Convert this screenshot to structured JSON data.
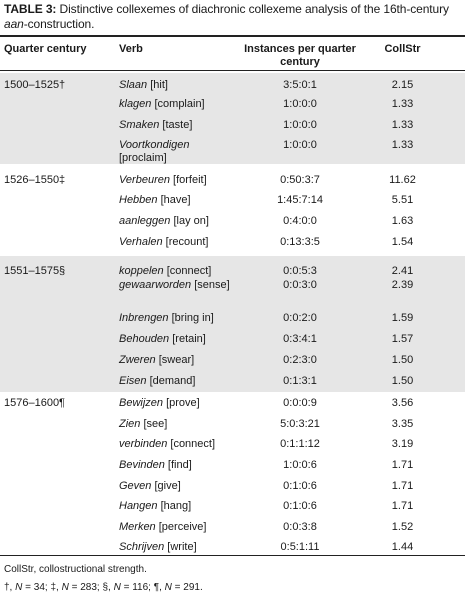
{
  "caption": {
    "label": "TABLE 3:",
    "text_before": " Distinctive collexemes of diachronic collexeme analysis of the 16th-century ",
    "italic": "aan",
    "text_after": "-construction."
  },
  "headers": {
    "quarter": "Quarter century",
    "verb": "Verb",
    "instances": "Instances per quarter century",
    "collstr": "CollStr"
  },
  "groups": [
    {
      "quarter": "1500–1525†",
      "rows": [
        {
          "verb_italic": "Slaan",
          "gloss": " [hit]",
          "instances": "3:5:0:1",
          "collstr": "2.15"
        },
        {
          "verb_italic": "klagen",
          "gloss": " [complain]",
          "instances": "1:0:0:0",
          "collstr": "1.33"
        },
        {
          "verb_italic": "Smaken",
          "gloss": " [taste]",
          "instances": "1:0:0:0",
          "collstr": "1.33"
        },
        {
          "verb_italic": "Voortkondigen",
          "gloss": " [proclaim]",
          "instances": "1:0:0:0",
          "collstr": "1.33"
        }
      ]
    },
    {
      "quarter": "1526–1550‡",
      "rows": [
        {
          "verb_italic": "Verbeuren",
          "gloss": " [forfeit]",
          "instances": "0:50:3:7",
          "collstr": "11.62"
        },
        {
          "verb_italic": "Hebben",
          "gloss": " [have]",
          "instances": "1:45:7:14",
          "collstr": "5.51"
        },
        {
          "verb_italic": "aanleggen",
          "gloss": " [lay on]",
          "instances": "0:4:0:0",
          "collstr": "1.63"
        },
        {
          "verb_italic": "Verhalen",
          "gloss": " [recount]",
          "instances": "0:13:3:5",
          "collstr": "1.54"
        }
      ]
    },
    {
      "quarter": "1551–1575§",
      "rows": [
        {
          "verb_italic": "koppelen",
          "gloss": " [connect]",
          "instances": "0:0:5:3",
          "collstr": "2.41"
        },
        {
          "verb_italic": "gewaarworden",
          "gloss": " [sense]",
          "instances": "0:0:3:0",
          "collstr": "2.39"
        },
        {
          "verb_italic": "Inbrengen",
          "gloss": " [bring in]",
          "instances": "0:0:2:0",
          "collstr": "1.59"
        },
        {
          "verb_italic": "Behouden",
          "gloss": " [retain]",
          "instances": "0:3:4:1",
          "collstr": "1.57"
        },
        {
          "verb_italic": "Zweren",
          "gloss": " [swear]",
          "instances": "0:2:3:0",
          "collstr": "1.50"
        },
        {
          "verb_italic": "Eisen",
          "gloss": " [demand]",
          "instances": "0:1:3:1",
          "collstr": "1.50"
        }
      ]
    },
    {
      "quarter": "1576–1600¶",
      "rows": [
        {
          "verb_italic": "Bewijzen",
          "gloss": " [prove]",
          "instances": "0:0:0:9",
          "collstr": "3.56"
        },
        {
          "verb_italic": "Zien",
          "gloss": " [see]",
          "instances": "5:0:3:21",
          "collstr": "3.35"
        },
        {
          "verb_italic": "verbinden",
          "gloss": " [connect]",
          "instances": "0:1:1:12",
          "collstr": "3.19"
        },
        {
          "verb_italic": "Bevinden",
          "gloss": " [find]",
          "instances": "1:0:0:6",
          "collstr": "1.71"
        },
        {
          "verb_italic": "Geven",
          "gloss": " [give]",
          "instances": "0:1:0:6",
          "collstr": "1.71"
        },
        {
          "verb_italic": "Hangen",
          "gloss": " [hang]",
          "instances": "0:1:0:6",
          "collstr": "1.71"
        },
        {
          "verb_italic": "Merken",
          "gloss": " [perceive]",
          "instances": "0:0:3:8",
          "collstr": "1.52"
        },
        {
          "verb_italic": "Schrijven",
          "gloss": " [write]",
          "instances": "0:5:1:11",
          "collstr": "1.44"
        }
      ]
    }
  ],
  "footnotes": {
    "abbrev": "CollStr, collostructional strength.",
    "counts": [
      {
        "symbol": "†",
        "n": "34"
      },
      {
        "symbol": "‡",
        "n": "283"
      },
      {
        "symbol": "§",
        "n": "116"
      },
      {
        "symbol": "¶",
        "n": "291"
      }
    ]
  }
}
